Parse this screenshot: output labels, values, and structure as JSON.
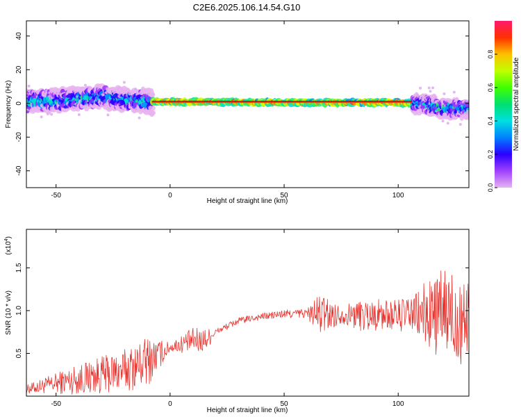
{
  "title": "C2E6.2025.106.14.54.G10",
  "chart_data": [
    {
      "type": "heatmap",
      "xlabel": "Height of straight line (km)",
      "ylabel": "Frequency (Hz)",
      "xlim": [
        -63,
        131
      ],
      "ylim": [
        -50,
        49
      ],
      "xticks": [
        -50,
        0,
        50,
        100
      ],
      "yticks": [
        40,
        20,
        0,
        -20,
        -40
      ],
      "colorbar": {
        "label": "Normalized spectral amplitude",
        "range": [
          0,
          1
        ],
        "ticks": [
          0.0,
          0.2,
          0.4,
          0.6,
          0.8
        ]
      },
      "ridge_center_hz": [
        {
          "x": -63,
          "y": 1
        },
        {
          "x": -45,
          "y": 2
        },
        {
          "x": -30,
          "y": 4
        },
        {
          "x": -20,
          "y": 2
        },
        {
          "x": -10,
          "y": 1
        },
        {
          "x": 0,
          "y": 1
        },
        {
          "x": 50,
          "y": 0.5
        },
        {
          "x": 100,
          "y": 0.5
        },
        {
          "x": 110,
          "y": 0
        },
        {
          "x": 120,
          "y": -3
        },
        {
          "x": 131,
          "y": -3
        }
      ]
    },
    {
      "type": "line",
      "xlabel": "Height of straight line (km)",
      "ylabel": "SNR (10 * v/v)",
      "y_multiplier_label": "(x10",
      "y_multiplier_exp": "4",
      "xlim": [
        -63,
        131
      ],
      "ylim": [
        0,
        1.95
      ],
      "xticks": [
        -50,
        0,
        50,
        100
      ],
      "yticks": [
        0.5,
        1.0,
        1.5
      ],
      "ytick_labels": [
        "0.5",
        "1.0",
        "1.5"
      ],
      "color": "#e8342f",
      "trend": [
        {
          "x": -63,
          "y": 0.08
        },
        {
          "x": -50,
          "y": 0.15
        },
        {
          "x": -40,
          "y": 0.2
        },
        {
          "x": -30,
          "y": 0.25
        },
        {
          "x": -20,
          "y": 0.3
        },
        {
          "x": -10,
          "y": 0.4
        },
        {
          "x": 0,
          "y": 0.57
        },
        {
          "x": 10,
          "y": 0.65
        },
        {
          "x": 15,
          "y": 0.65
        },
        {
          "x": 20,
          "y": 0.75
        },
        {
          "x": 30,
          "y": 0.88
        },
        {
          "x": 40,
          "y": 0.93
        },
        {
          "x": 50,
          "y": 0.96
        },
        {
          "x": 60,
          "y": 0.97
        },
        {
          "x": 70,
          "y": 0.95
        },
        {
          "x": 80,
          "y": 0.95
        },
        {
          "x": 90,
          "y": 0.95
        },
        {
          "x": 100,
          "y": 0.95
        },
        {
          "x": 110,
          "y": 0.95
        },
        {
          "x": 120,
          "y": 0.95
        },
        {
          "x": 131,
          "y": 0.95
        }
      ],
      "noise_amplitude": [
        {
          "x": -63,
          "y": 0.05
        },
        {
          "x": -40,
          "y": 0.18
        },
        {
          "x": -20,
          "y": 0.25
        },
        {
          "x": -10,
          "y": 0.3
        },
        {
          "x": 0,
          "y": 0.06
        },
        {
          "x": 10,
          "y": 0.15
        },
        {
          "x": 15,
          "y": 0.15
        },
        {
          "x": 20,
          "y": 0.04
        },
        {
          "x": 40,
          "y": 0.04
        },
        {
          "x": 60,
          "y": 0.06
        },
        {
          "x": 66,
          "y": 0.25
        },
        {
          "x": 75,
          "y": 0.1
        },
        {
          "x": 85,
          "y": 0.2
        },
        {
          "x": 95,
          "y": 0.18
        },
        {
          "x": 105,
          "y": 0.2
        },
        {
          "x": 110,
          "y": 0.35
        },
        {
          "x": 120,
          "y": 0.55
        },
        {
          "x": 131,
          "y": 0.65
        }
      ]
    }
  ]
}
